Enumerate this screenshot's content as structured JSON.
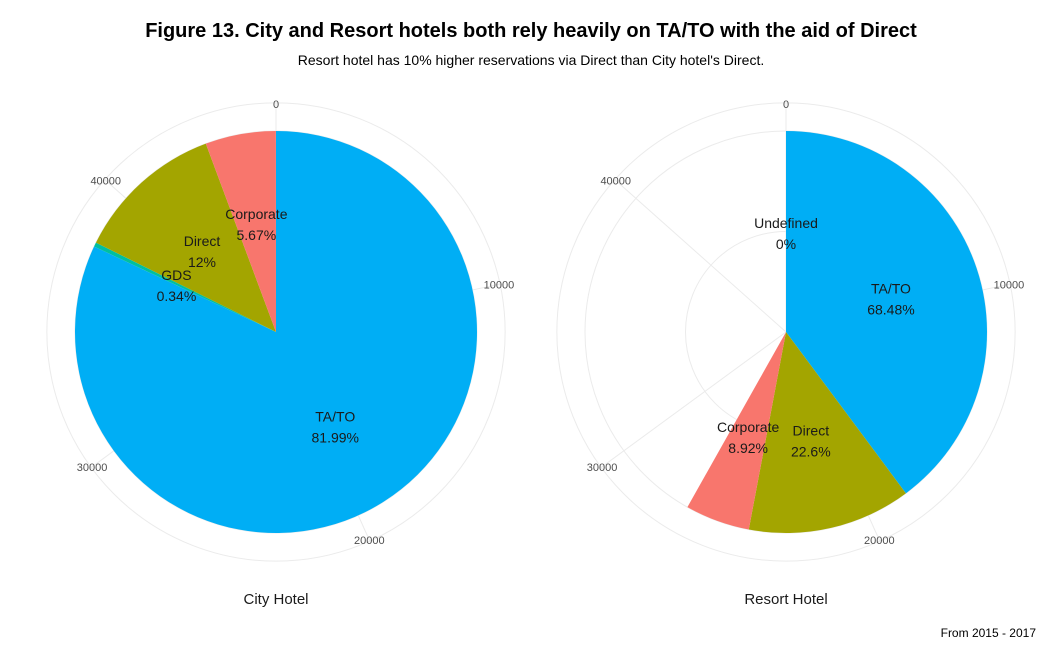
{
  "title": "Figure 13. City and Resort hotels both rely heavily on TA/TO with the aid of Direct",
  "subtitle": "Resort hotel has 10% higher reservations via Direct than City hotel's Direct.",
  "caption": "From 2015 - 2017",
  "colors": {
    "TA/TO": "#00AEF5",
    "Direct": "#A3A500",
    "Corporate": "#F8766D",
    "GDS": "#00BFA0",
    "Undefined": "#E76BF3"
  },
  "chart_data": [
    {
      "type": "pie",
      "xlabel": "City Hotel",
      "axis_ticks": [
        "0",
        "10000",
        "20000",
        "30000",
        "40000"
      ],
      "tick_values": [
        0,
        10000,
        20000,
        30000,
        40000
      ],
      "axis_max": 46200,
      "slices": [
        {
          "label": "TA/TO",
          "value": 37880,
          "pct_label": "81.99%"
        },
        {
          "label": "GDS",
          "value": 157,
          "pct_label": "0.34%"
        },
        {
          "label": "Direct",
          "value": 5540,
          "pct_label": "12%"
        },
        {
          "label": "Corporate",
          "value": 2620,
          "pct_label": "5.67%"
        }
      ]
    },
    {
      "type": "pie",
      "xlabel": "Resort Hotel",
      "axis_ticks": [
        "0",
        "10000",
        "20000",
        "30000",
        "40000"
      ],
      "tick_values": [
        0,
        10000,
        20000,
        30000,
        40000
      ],
      "axis_max": 46200,
      "slices": [
        {
          "label": "TA/TO",
          "value": 18400,
          "pct_label": "68.48%"
        },
        {
          "label": "Direct",
          "value": 6070,
          "pct_label": "22.6%"
        },
        {
          "label": "Corporate",
          "value": 2400,
          "pct_label": "8.92%"
        },
        {
          "label": "Undefined",
          "value": 0,
          "pct_label": "0%"
        }
      ]
    }
  ]
}
